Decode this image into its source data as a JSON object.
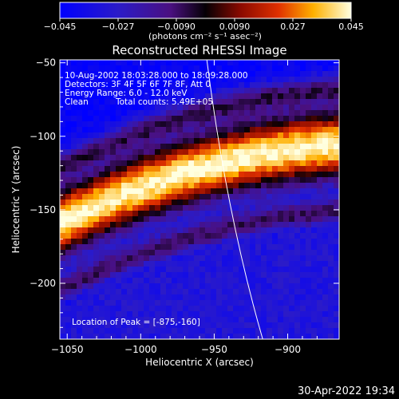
{
  "colorbar": {
    "ticks": [
      "-0.045",
      "-0.027",
      "-0.0090",
      "0.0090",
      "0.027",
      "0.045"
    ],
    "unit_label": "(photons cm⁻² s⁻¹ asec⁻²)"
  },
  "title": "Reconstructed RHESSI Image",
  "info": {
    "line1": "10-Aug-2002 18:03:28.000 to 18:09:28.000",
    "line2": "Detectors: 3F 4F 5F 6F 7F 8F, Att 0",
    "line3": "Energy Range: 6.0 - 12.0 keV",
    "line4_left": "Clean",
    "line4_right": "Total counts: 5.49E+05"
  },
  "peak_label": "Location of Peak = [-875,-160]",
  "timestamp": "30-Apr-2022 19:34",
  "chart_data": {
    "type": "heatmap",
    "title": "Reconstructed RHESSI Image",
    "xlabel": "Heliocentric X (arcsec)",
    "ylabel": "Heliocentric Y (arcsec)",
    "xlim": [
      -1055,
      -865
    ],
    "ylim": [
      -238,
      -48
    ],
    "xticks": [
      -1050,
      -1000,
      -950,
      -900
    ],
    "xtick_labels": [
      "−1050",
      "−1000",
      "−950",
      "−900"
    ],
    "yticks": [
      -50,
      -100,
      -150,
      -200
    ],
    "ytick_labels": [
      "−50",
      "−100",
      "−150",
      "−200"
    ],
    "colorscale_range": [
      -0.045,
      0.045
    ],
    "peak_location": [
      -875,
      -160
    ],
    "limb_arc": {
      "x_at_ymax": -955,
      "x_at_ymin": -917
    }
  }
}
